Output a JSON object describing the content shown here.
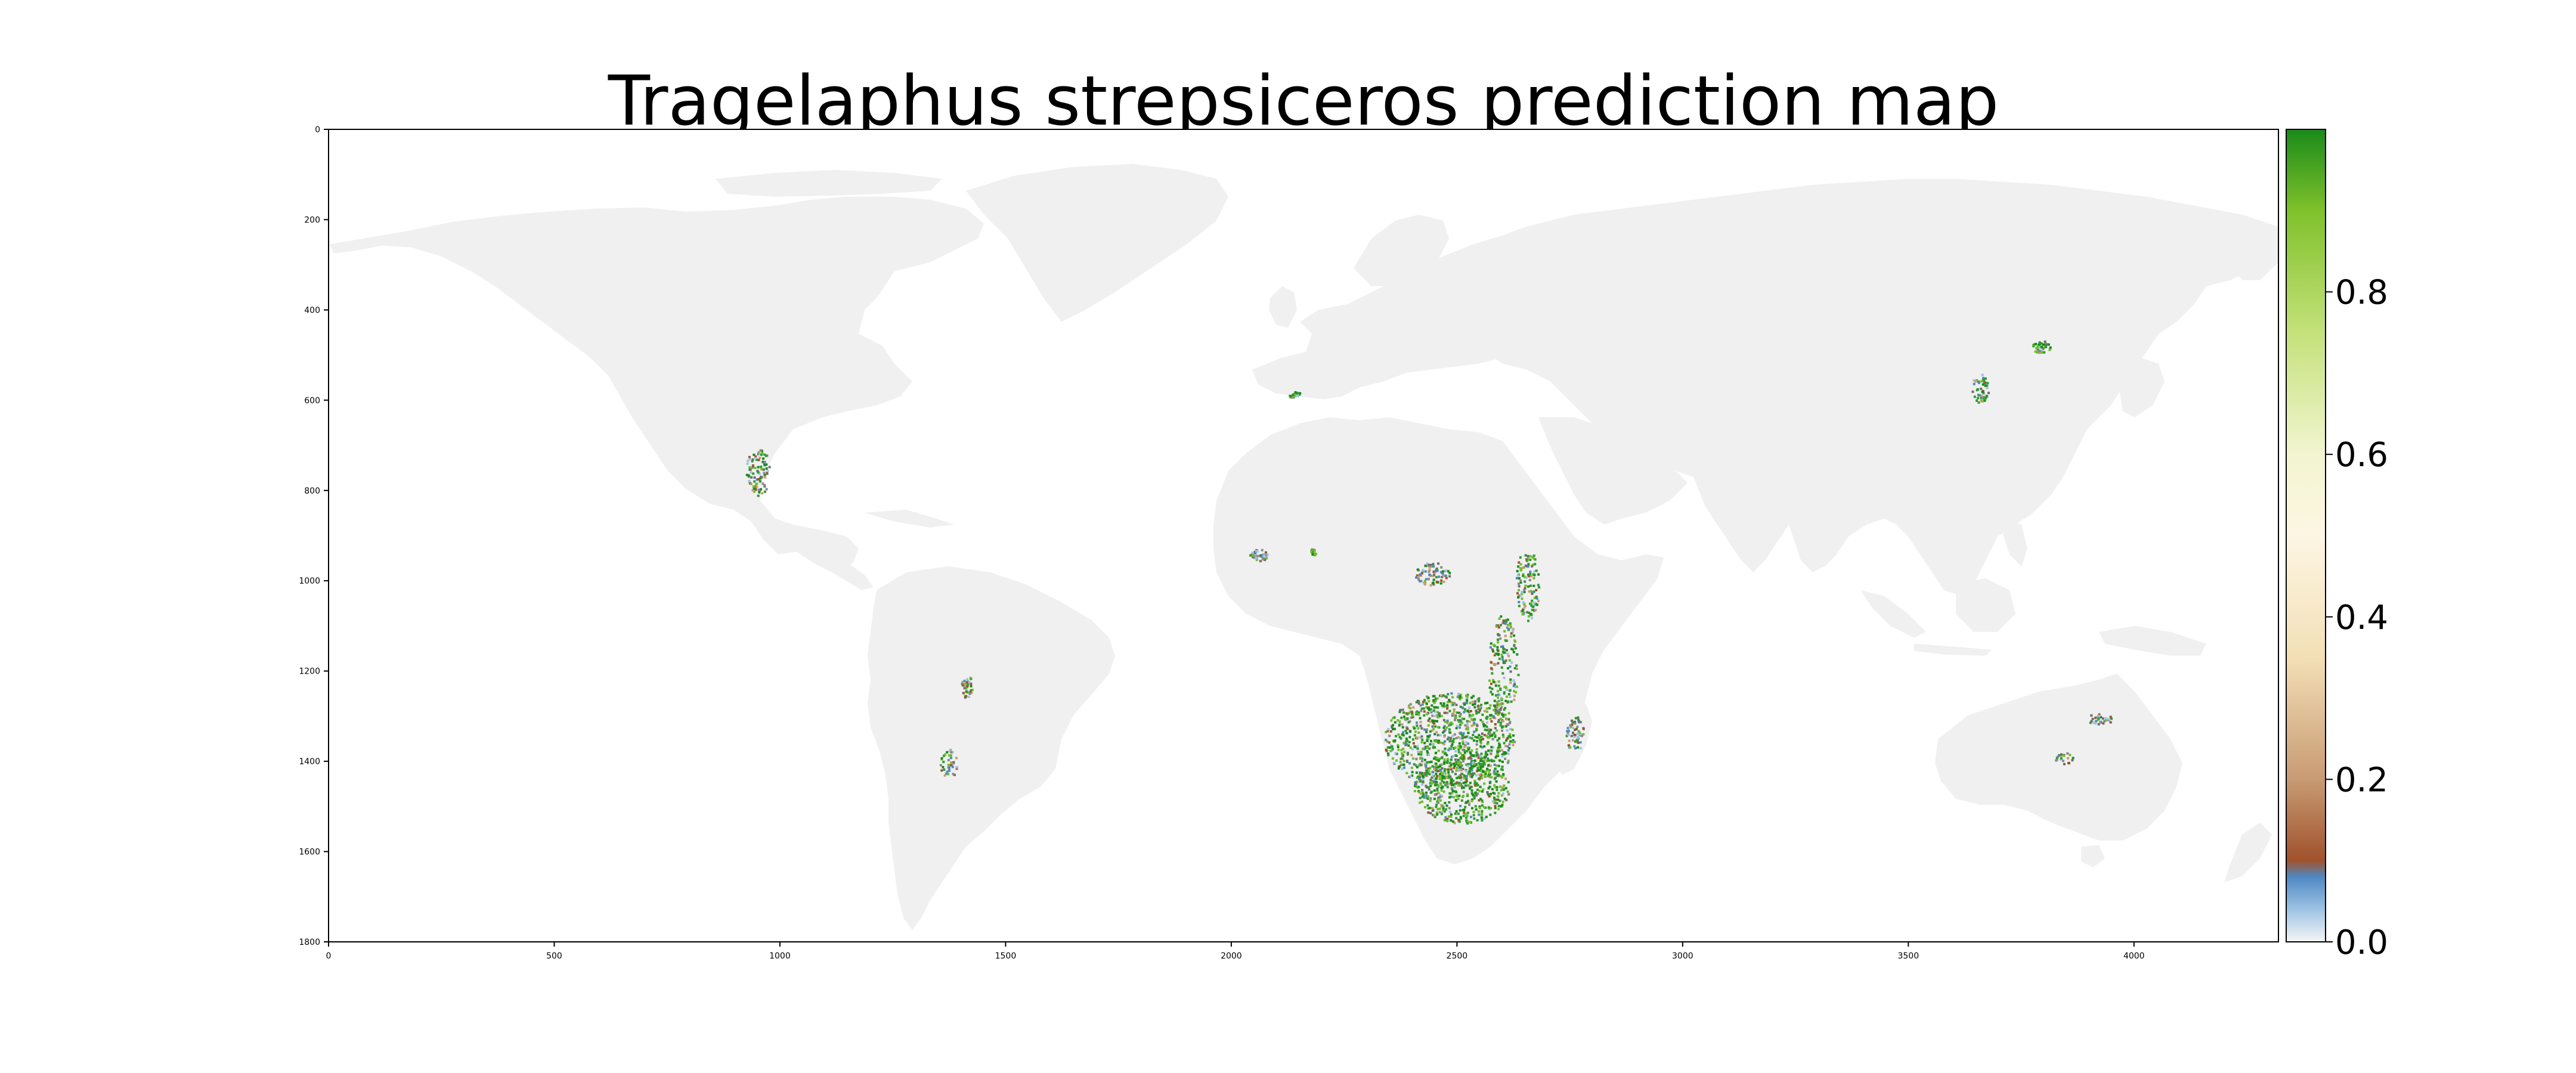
{
  "title": "Tragelaphus strepsiceros prediction map",
  "map": {
    "x_ticks": [
      "0",
      "500",
      "1000",
      "1500",
      "2000",
      "2500",
      "3000",
      "3500",
      "4000"
    ],
    "y_ticks": [
      "0",
      "200",
      "400",
      "600",
      "800",
      "1000",
      "1200",
      "1400",
      "1600",
      "1800"
    ],
    "land_color": "#f0f0f0",
    "background_color": "#ffffff"
  },
  "colorbar": {
    "ticks": [
      "0.0",
      "0.2",
      "0.4",
      "0.6",
      "0.8"
    ],
    "tick_values": [
      0.0,
      0.2,
      0.4,
      0.6,
      0.8
    ],
    "range": [
      0.0,
      1.0
    ],
    "colormap": [
      {
        "v": 0.0,
        "color": "#f5f5f5"
      },
      {
        "v": 0.04,
        "color": "#9dc3e3"
      },
      {
        "v": 0.08,
        "color": "#4f88c2"
      },
      {
        "v": 0.1,
        "color": "#a0522d"
      },
      {
        "v": 0.2,
        "color": "#c89b73"
      },
      {
        "v": 0.35,
        "color": "#f3dfb6"
      },
      {
        "v": 0.5,
        "color": "#fdf6e3"
      },
      {
        "v": 0.6,
        "color": "#f2f5d0"
      },
      {
        "v": 0.75,
        "color": "#c4e17a"
      },
      {
        "v": 0.9,
        "color": "#7fc12b"
      },
      {
        "v": 1.0,
        "color": "#1a8a1a"
      }
    ]
  }
}
